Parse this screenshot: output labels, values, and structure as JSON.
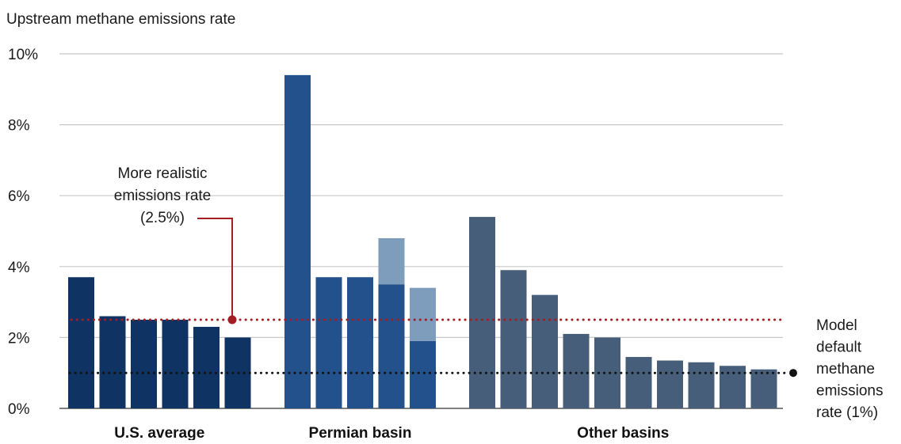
{
  "chart_data": {
    "type": "bar",
    "stacked": true,
    "title": "Upstream methane emissions rate",
    "ylim": [
      0,
      10
    ],
    "yticks": [
      {
        "value": 0,
        "label": "0%"
      },
      {
        "value": 2,
        "label": "2%"
      },
      {
        "value": 4,
        "label": "4%"
      },
      {
        "value": 6,
        "label": "6%"
      },
      {
        "value": 8,
        "label": "8%"
      },
      {
        "value": 10,
        "label": "10%"
      }
    ],
    "grid": true,
    "groups": [
      {
        "label": "U.S. average",
        "color": "#0f3463",
        "light_color": "#0f3463",
        "bars": [
          {
            "value": 3.7
          },
          {
            "value": 2.6
          },
          {
            "value": 2.5
          },
          {
            "value": 2.5
          },
          {
            "value": 2.3
          },
          {
            "value": 2.0
          }
        ]
      },
      {
        "label": "Permian basin",
        "color": "#23518b",
        "light_color": "#7e9cbb",
        "bars": [
          {
            "value": 9.4
          },
          {
            "value": 3.7
          },
          {
            "value": 3.7
          },
          {
            "value": 3.5,
            "extra": 1.3
          },
          {
            "value": 1.9,
            "extra": 1.5
          }
        ]
      },
      {
        "label": "Other basins",
        "color": "#465e79",
        "light_color": "#465e79",
        "bars": [
          {
            "value": 5.4
          },
          {
            "value": 3.9
          },
          {
            "value": 3.2
          },
          {
            "value": 2.1
          },
          {
            "value": 2.0
          },
          {
            "value": 1.45
          },
          {
            "value": 1.35
          },
          {
            "value": 1.3
          },
          {
            "value": 1.2
          },
          {
            "value": 1.1
          }
        ]
      }
    ],
    "reference_lines": [
      {
        "id": "realistic",
        "value": 2.5,
        "color": "#a51c24",
        "label_lines": [
          "More realistic",
          "emissions rate",
          "(2.5%)"
        ]
      },
      {
        "id": "default",
        "value": 1.0,
        "color": "#111111",
        "label_lines": [
          "Model",
          "default",
          "methane",
          "emissions",
          "rate (1%)"
        ]
      }
    ]
  }
}
